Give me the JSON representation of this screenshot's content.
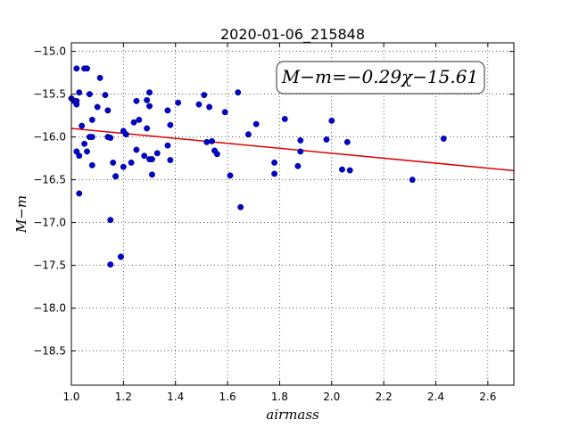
{
  "chart_data": {
    "type": "scatter",
    "title": "2020-01-06_215848",
    "xlabel": "airmass",
    "ylabel": "M−m",
    "xlim": [
      1.0,
      2.7
    ],
    "ylim": [
      -18.9,
      -14.9
    ],
    "y_inverted": true,
    "grid": true,
    "xticks": [
      "1.0",
      "1.2",
      "1.4",
      "1.6",
      "1.8",
      "2.0",
      "2.2",
      "2.4",
      "2.6"
    ],
    "yticks": [
      "−15.0",
      "−15.5",
      "−16.0",
      "−16.5",
      "−17.0",
      "−17.5",
      "−18.0",
      "−18.5"
    ],
    "annotation": "M−m=−0.29χ−15.61",
    "fit": {
      "slope": -0.29,
      "intercept": -15.61,
      "color": "#dd0000"
    },
    "point_color": "#0000cc",
    "x": [
      1.0,
      1.01,
      1.02,
      1.02,
      1.02,
      1.03,
      1.03,
      1.02,
      1.03,
      1.04,
      1.05,
      1.06,
      1.05,
      1.06,
      1.07,
      1.07,
      1.08,
      1.08,
      1.08,
      1.1,
      1.11,
      1.13,
      1.14,
      1.14,
      1.15,
      1.16,
      1.17,
      1.17,
      1.19,
      1.2,
      1.2,
      1.21,
      1.23,
      1.24,
      1.25,
      1.25,
      1.26,
      1.28,
      1.29,
      1.29,
      1.3,
      1.3,
      1.31,
      1.31,
      1.33,
      1.37,
      1.37,
      1.38,
      1.38,
      1.41,
      1.49,
      1.51,
      1.52,
      1.53,
      1.54,
      1.55,
      1.56,
      1.59,
      1.61,
      1.64,
      1.65,
      1.68,
      1.71,
      1.78,
      1.78,
      1.82,
      1.87,
      1.88,
      1.88,
      1.98,
      2.0,
      2.04,
      2.06,
      2.07,
      2.31,
      2.43,
      1.15,
      1.15,
      1.19,
      1.3
    ],
    "y": [
      -15.55,
      -15.58,
      -15.2,
      -15.62,
      -16.17,
      -15.48,
      -16.22,
      -15.58,
      -16.66,
      -15.87,
      -15.2,
      -15.2,
      -16.08,
      -16.17,
      -15.5,
      -16.0,
      -15.8,
      -16.33,
      -16.0,
      -15.65,
      -15.31,
      -15.51,
      -15.69,
      -16.0,
      -16.97,
      -16.3,
      -16.46,
      -16.46,
      -17.4,
      -15.93,
      -16.35,
      -15.97,
      -16.3,
      -15.83,
      -15.58,
      -16.15,
      -15.8,
      -16.22,
      -15.57,
      -15.9,
      -15.48,
      -15.64,
      -16.26,
      -16.44,
      -16.19,
      -15.69,
      -16.1,
      -15.86,
      -16.27,
      -15.6,
      -15.62,
      -15.51,
      -16.06,
      -15.65,
      -16.05,
      -16.16,
      -16.2,
      -15.71,
      -16.45,
      -15.48,
      -16.82,
      -15.97,
      -15.85,
      -16.3,
      -16.43,
      -15.79,
      -16.34,
      -16.04,
      -16.17,
      -16.03,
      -15.81,
      -16.38,
      -16.06,
      -16.39,
      -16.5,
      -16.02,
      -17.49,
      -16.01,
      -17.4,
      -16.26
    ]
  }
}
